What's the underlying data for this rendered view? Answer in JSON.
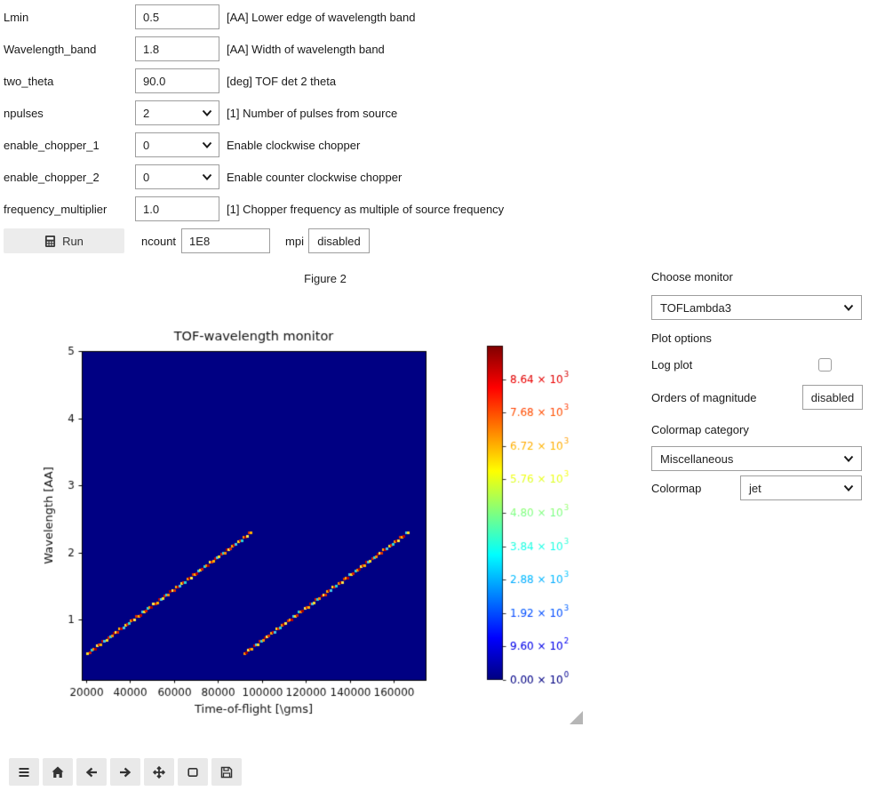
{
  "form": {
    "rows": [
      {
        "label": "Lmin",
        "value": "0.5",
        "desc": "[AA] Lower edge of wavelength band"
      },
      {
        "label": "Wavelength_band",
        "value": "1.8",
        "desc": "[AA] Width of wavelength band"
      },
      {
        "label": "two_theta",
        "value": "90.0",
        "desc": "[deg] TOF det 2 theta"
      },
      {
        "label": "npulses",
        "value": "2",
        "desc": "[1] Number of pulses from source"
      },
      {
        "label": "enable_chopper_1",
        "value": "0",
        "desc": "Enable clockwise chopper"
      },
      {
        "label": "enable_chopper_2",
        "value": "0",
        "desc": "Enable counter clockwise chopper"
      },
      {
        "label": "frequency_multiplier",
        "value": "1.0",
        "desc": "[1] Chopper frequency as multiple of source frequency"
      }
    ],
    "run": {
      "button_label": "Run",
      "ncount_label": "ncount",
      "ncount_value": "1E8",
      "mpi_label": "mpi",
      "mpi_value": "disabled"
    }
  },
  "figure": {
    "header": "Figure 2"
  },
  "chart_data": {
    "type": "heatmap",
    "title": "TOF-wavelength monitor",
    "xlabel": "Time-of-flight [\\gms]",
    "ylabel": "Wavelength [AA]",
    "xlim": [
      18000,
      174500
    ],
    "ylim": [
      0.1,
      5.0
    ],
    "xticks": [
      20000,
      40000,
      60000,
      80000,
      100000,
      120000,
      140000,
      160000
    ],
    "yticks": [
      1,
      2,
      3,
      4,
      5
    ],
    "background_color": "#000083",
    "colormap": "jet",
    "colormap_stops": [
      [
        0,
        "#000080"
      ],
      [
        0.125,
        "#0000ff"
      ],
      [
        0.375,
        "#00ffff"
      ],
      [
        0.625,
        "#ffff00"
      ],
      [
        0.875,
        "#ff0000"
      ],
      [
        1,
        "#800000"
      ]
    ],
    "colorbar": {
      "vmin": 0,
      "vmax": 9600,
      "ticks": [
        {
          "mantissa": "0.00",
          "exp": "0",
          "value": 0
        },
        {
          "mantissa": "9.60",
          "exp": "2",
          "value": 960
        },
        {
          "mantissa": "1.92",
          "exp": "3",
          "value": 1920
        },
        {
          "mantissa": "2.88",
          "exp": "3",
          "value": 2880
        },
        {
          "mantissa": "3.84",
          "exp": "3",
          "value": 3840
        },
        {
          "mantissa": "4.80",
          "exp": "3",
          "value": 4800
        },
        {
          "mantissa": "5.76",
          "exp": "3",
          "value": 5760
        },
        {
          "mantissa": "6.72",
          "exp": "3",
          "value": 6720
        },
        {
          "mantissa": "7.68",
          "exp": "3",
          "value": 7680
        },
        {
          "mantissa": "8.64",
          "exp": "3",
          "value": 8640
        }
      ]
    },
    "streaks": [
      {
        "tof_start": 20600,
        "tof_end": 95000,
        "wl_start": 0.5,
        "wl_end": 2.3
      },
      {
        "tof_start": 92000,
        "tof_end": 166300,
        "wl_start": 0.5,
        "wl_end": 2.3
      }
    ],
    "dash_colors": [
      "#ffdf20",
      "#d81e00",
      "#28d8d8",
      "#ff8c00",
      "#a80000",
      "#ffec4a",
      "#e03000",
      "#ffb000",
      "#c00000",
      "#40c8e8"
    ]
  },
  "panel": {
    "choose_monitor_label": "Choose monitor",
    "monitor_value": "TOFLambda3",
    "plot_options_label": "Plot options",
    "log_plot_label": "Log plot",
    "orders_label": "Orders of magnitude",
    "orders_value": "disabled",
    "colormap_category_label": "Colormap category",
    "colormap_category_value": "Miscellaneous",
    "colormap_label": "Colormap",
    "colormap_value": "jet"
  },
  "toolbar": {
    "buttons": [
      {
        "name": "menu"
      },
      {
        "name": "home"
      },
      {
        "name": "back"
      },
      {
        "name": "forward"
      },
      {
        "name": "pan"
      },
      {
        "name": "zoom-rect"
      },
      {
        "name": "save"
      }
    ]
  }
}
